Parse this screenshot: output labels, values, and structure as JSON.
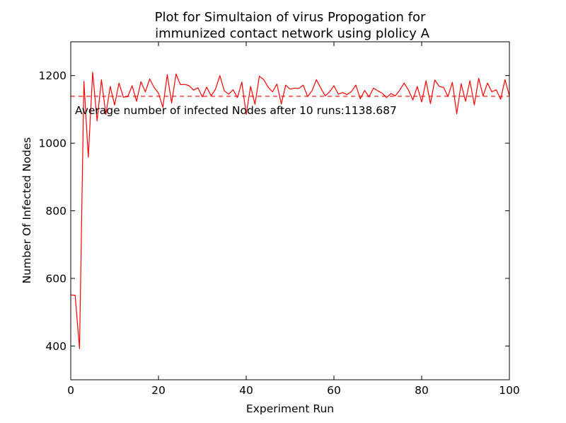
{
  "chart_data": {
    "type": "line",
    "title_lines": [
      "Plot for Simultaion of virus Propogation for",
      "immunized contact network using plolicy A"
    ],
    "xlabel": "Experiment Run",
    "ylabel": "Number Of Infected Nodes",
    "xlim": [
      0,
      100
    ],
    "ylim": [
      300,
      1300
    ],
    "x_ticks": [
      0,
      20,
      40,
      60,
      80,
      100
    ],
    "y_ticks": [
      400,
      600,
      800,
      1000,
      1200
    ],
    "grid": false,
    "series": [
      {
        "color": "#ff0000",
        "style": "solid",
        "x": [
          0,
          1,
          2,
          3,
          4,
          5,
          6,
          7,
          8,
          9,
          10,
          11,
          12,
          13,
          14,
          15,
          16,
          17,
          18,
          19,
          20,
          21,
          22,
          23,
          24,
          25,
          26,
          27,
          28,
          29,
          30,
          31,
          32,
          33,
          34,
          35,
          36,
          37,
          38,
          39,
          40,
          41,
          42,
          43,
          44,
          45,
          46,
          47,
          48,
          49,
          50,
          51,
          52,
          53,
          54,
          55,
          56,
          57,
          58,
          59,
          60,
          61,
          62,
          63,
          64,
          65,
          66,
          67,
          68,
          69,
          70,
          71,
          72,
          73,
          74,
          75,
          76,
          77,
          78,
          79,
          80,
          81,
          82,
          83,
          84,
          85,
          86,
          87,
          88,
          89,
          90,
          91,
          92,
          93,
          94,
          95,
          96,
          97,
          98,
          99,
          100
        ],
        "values": [
          551,
          550,
          392,
          1183,
          958,
          1210,
          1066,
          1188,
          1085,
          1168,
          1113,
          1178,
          1136,
          1138,
          1170,
          1124,
          1182,
          1152,
          1190,
          1165,
          1148,
          1106,
          1203,
          1119,
          1205,
          1173,
          1174,
          1170,
          1157,
          1164,
          1137,
          1166,
          1140,
          1160,
          1200,
          1155,
          1145,
          1158,
          1135,
          1181,
          1085,
          1168,
          1115,
          1198,
          1188,
          1166,
          1152,
          1175,
          1116,
          1172,
          1160,
          1163,
          1162,
          1172,
          1138,
          1155,
          1188,
          1163,
          1140,
          1152,
          1170,
          1145,
          1150,
          1144,
          1153,
          1172,
          1131,
          1156,
          1137,
          1163,
          1155,
          1148,
          1135,
          1147,
          1140,
          1157,
          1178,
          1157,
          1128,
          1168,
          1122,
          1185,
          1117,
          1187,
          1168,
          1165,
          1138,
          1180,
          1087,
          1176,
          1124,
          1185,
          1113,
          1192,
          1140,
          1178,
          1152,
          1158,
          1130,
          1188,
          1140
        ]
      },
      {
        "color": "#ff0000",
        "style": "dashed",
        "x": [
          0,
          100
        ],
        "values": [
          1138.687,
          1138.687
        ]
      }
    ],
    "annotation": "Average number of infected Nodes after 10 runs:1138.687"
  }
}
